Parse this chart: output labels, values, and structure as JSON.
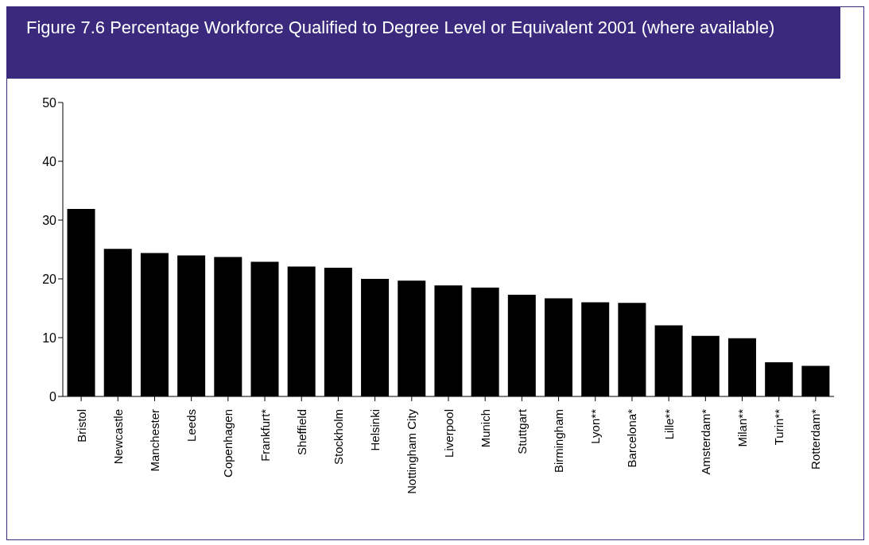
{
  "chart_data": {
    "type": "bar",
    "title": "Figure 7.6  Percentage Workforce Qualified to Degree Level or Equivalent 2001 (where available)",
    "categories": [
      "Bristol",
      "Newcastle",
      "Manchester",
      "Leeds",
      "Copenhagen",
      "Frankfurt*",
      "Sheffield",
      "Stockholm",
      "Helsinki",
      "Nottingham City",
      "Liverpool",
      "Munich",
      "Stuttgart",
      "Birmingham",
      "Lyon**",
      "Barcelona*",
      "Lille**",
      "Amsterdam*",
      "Milan**",
      "Turin**",
      "Rotterdam*"
    ],
    "values": [
      31.9,
      25.1,
      24.4,
      24.0,
      23.7,
      22.9,
      22.1,
      21.9,
      20.0,
      19.7,
      18.9,
      18.5,
      17.3,
      16.7,
      16.0,
      15.9,
      12.1,
      10.3,
      9.9,
      5.8,
      5.2
    ],
    "color": "#000000",
    "ylim": [
      0,
      50
    ],
    "yticks": [
      0,
      10,
      20,
      30,
      40,
      50
    ],
    "grid": false,
    "legend": false
  }
}
